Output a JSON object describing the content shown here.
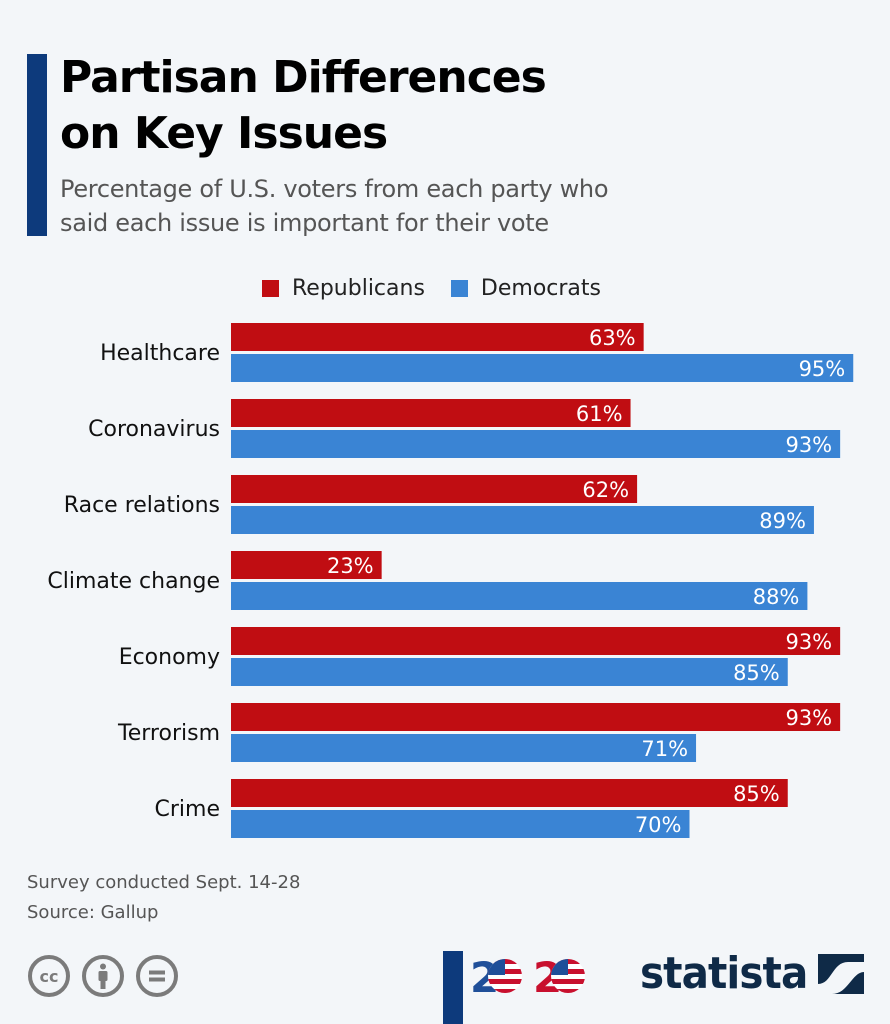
{
  "header": {
    "title_line1": "Partisan Differences",
    "title_line2": "on Key Issues",
    "subtitle_line1": "Percentage of U.S. voters from each party who",
    "subtitle_line2": "said each issue is important for their vote"
  },
  "colors": {
    "accent": "#0d3a7c",
    "republicans": "#c00d12",
    "democrats": "#3a84d4",
    "background": "#f3f6f9"
  },
  "chart_data": {
    "type": "bar",
    "orientation": "horizontal",
    "title": "Partisan Differences on Key Issues",
    "subtitle": "Percentage of U.S. voters from each party who said each issue is important for their vote",
    "categories": [
      "Healthcare",
      "Coronavirus",
      "Race relations",
      "Climate change",
      "Economy",
      "Terrorism",
      "Crime"
    ],
    "series": [
      {
        "name": "Republicans",
        "color": "#c00d12",
        "values": [
          63,
          61,
          62,
          23,
          93,
          93,
          85
        ]
      },
      {
        "name": "Democrats",
        "color": "#3a84d4",
        "values": [
          95,
          93,
          89,
          88,
          85,
          71,
          70
        ]
      }
    ],
    "value_suffix": "%",
    "xlim": [
      0,
      100
    ],
    "xlabel": "",
    "ylabel": "",
    "grid": false,
    "legend": "top"
  },
  "legend": {
    "items": [
      {
        "label": "Republicans",
        "color": "#c00d12"
      },
      {
        "label": "Democrats",
        "color": "#3a84d4"
      }
    ]
  },
  "footer": {
    "note": "Survey conducted Sept. 14-28",
    "source": "Source: Gallup",
    "license_icons": [
      "creative-commons-icon",
      "attribution-icon",
      "no-derivatives-icon"
    ],
    "badge_text": "2020",
    "brand": "statista"
  }
}
